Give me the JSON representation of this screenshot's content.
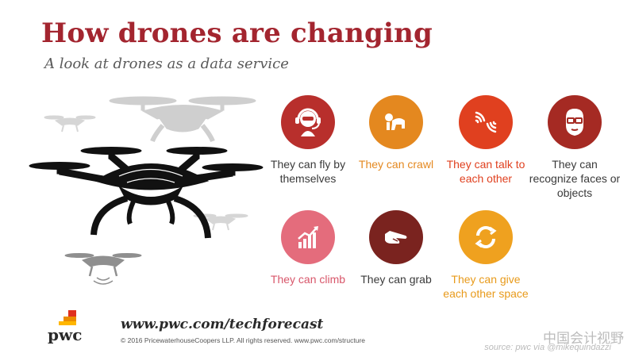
{
  "header": {
    "title": "How drones are changing",
    "subtitle": "A look at drones as a data service"
  },
  "features": [
    {
      "label": "They can fly by themselves",
      "icon": "pilot-headset-icon",
      "circle_color": "#b82f2c",
      "text_color": "#3a3a3a"
    },
    {
      "label": "They can crawl",
      "icon": "crawling-figure-icon",
      "circle_color": "#e4881f",
      "text_color": "#e4881f"
    },
    {
      "label": "They can talk to each other",
      "icon": "signal-waves-icon",
      "circle_color": "#e0401f",
      "text_color": "#e0401f"
    },
    {
      "label": "They can recognize faces or objects",
      "icon": "face-glasses-icon",
      "circle_color": "#a52a23",
      "text_color": "#3a3a3a"
    },
    {
      "label": "They can climb",
      "icon": "rising-bar-chart-icon",
      "circle_color": "#e46c7c",
      "text_color": "#d8566a"
    },
    {
      "label": "They can grab",
      "icon": "pointing-hand-icon",
      "circle_color": "#7a231f",
      "text_color": "#3a3a3a"
    },
    {
      "label": "They can give each other space",
      "icon": "circular-arrows-icon",
      "circle_color": "#efa11f",
      "text_color": "#e89a1a"
    }
  ],
  "footer": {
    "logo_text": "pwc",
    "url": "www.pwc.com/techforecast",
    "copyright": "© 2016 PricewaterhouseCoopers LLP.  All rights reserved.  www.pwc.com/structure"
  },
  "watermark": {
    "text": "中国会计视野",
    "source": "source: pwc via @mikequindazzi"
  }
}
